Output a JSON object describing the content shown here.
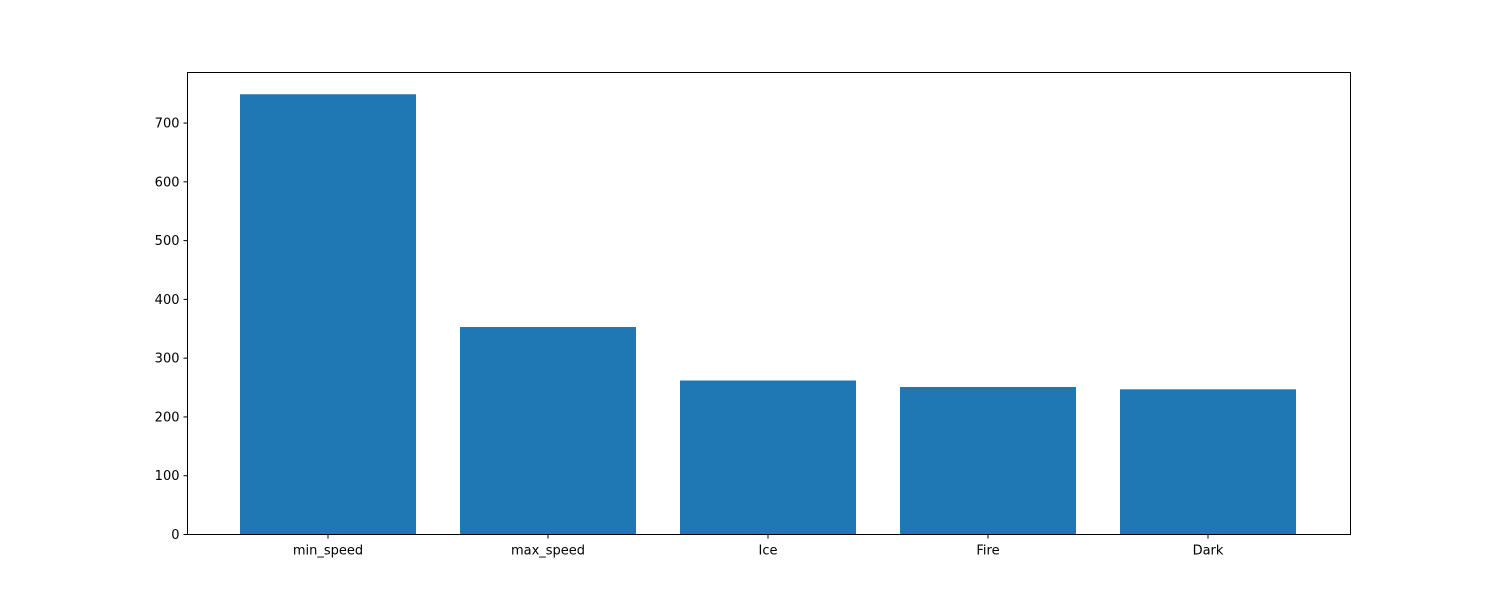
{
  "chart_data": {
    "type": "bar",
    "categories": [
      "min_speed",
      "max_speed",
      "Ice",
      "Fire",
      "Dark"
    ],
    "values": [
      749,
      353,
      262,
      251,
      247
    ],
    "ylim": [
      0,
      786
    ],
    "yticks": [
      0,
      100,
      200,
      300,
      400,
      500,
      600,
      700
    ],
    "grid": false,
    "colors": {
      "bar": "#1f77b4",
      "axes": "#000000",
      "background": "#ffffff"
    }
  }
}
